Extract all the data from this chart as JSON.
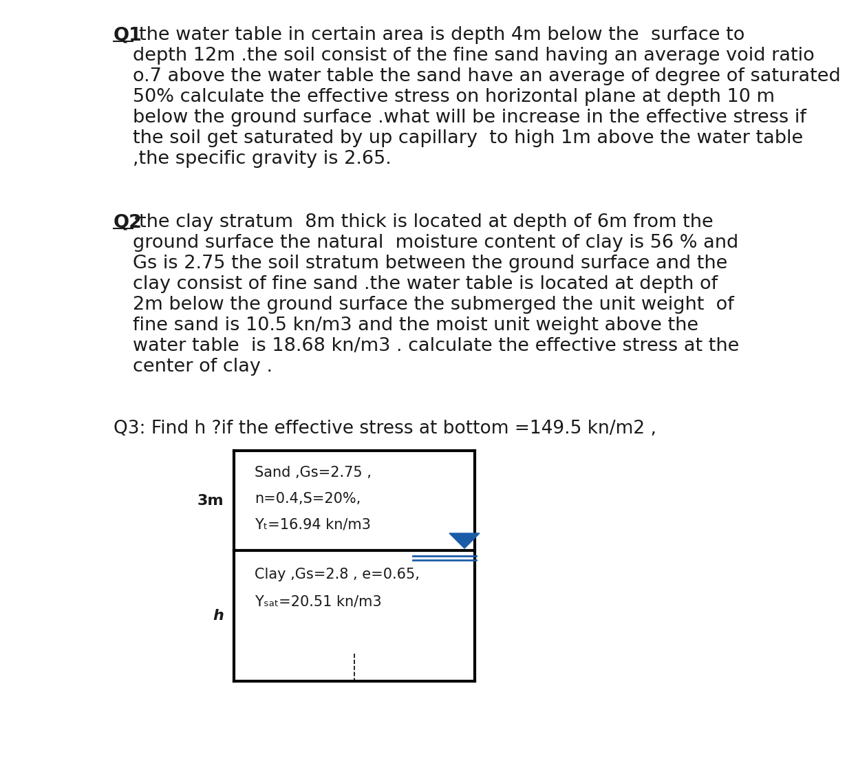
{
  "background_color": "#ffffff",
  "q1_label": "Q1",
  "q1_rest": ":the water table in certain area is depth 4m below the  surface to\ndepth 12m .the soil consist of the fine sand having an average void ratio\no.7 above the water table the sand have an average of degree of saturated\n50% calculate the effective stress on horizontal plane at depth 10 m\nbelow the ground surface .what will be increase in the effective stress if\nthe soil get saturated by up capillary  to high 1m above the water table\n,the specific gravity is 2.65.",
  "q2_label": "Q2",
  "q2_rest": ":the clay stratum  8m thick is located at depth of 6m from the\nground surface the natural  moisture content of clay is 56 % and\nGs is 2.75 the soil stratum between the ground surface and the\nclay consist of fine sand .the water table is located at depth of\n2m below the ground surface the submerged the unit weight  of\nfine sand is 10.5 kn/m3 and the moist unit weight above the\nwater table  is 18.68 kn/m3 . calculate the effective stress at the\ncenter of clay .",
  "q3_text": "Q3: Find h ?if the effective stress at bottom =149.5 kn/m2 ,",
  "sand_line1": "Sand ,Gs=2.75 ,",
  "sand_line2": "n=0.4,S=20%,",
  "sand_line3": "Yₜ=16.94 kn/m3",
  "clay_line1": "Clay ,Gs=2.8 , e=0.65,",
  "clay_line2": "Yₛₐₜ=20.51 kn/m3",
  "label_3m": "3m",
  "label_h": "h",
  "text_color": "#1a1a1a",
  "font_size_main": 19.5,
  "font_size_q3": 19,
  "font_size_diag": 15
}
